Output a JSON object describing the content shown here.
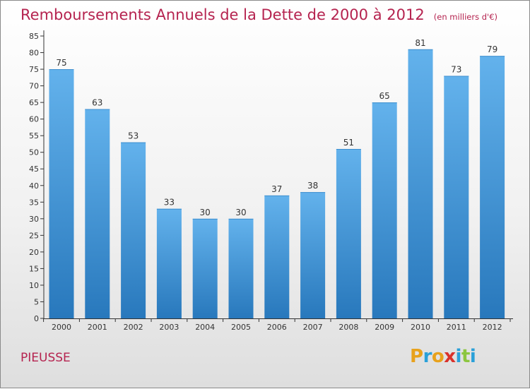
{
  "header": {
    "title": "Remboursements Annuels de la Dette de 2000 à 2012",
    "subtitle": "(en milliers d'€)"
  },
  "footer": {
    "commune": "PIEUSSE",
    "brand": "Proxiti",
    "brand_colors": [
      "#e8a21c",
      "#2aa0d8",
      "#e8a21c",
      "#d9322b",
      "#2aa0d8",
      "#8cc63f",
      "#2aa0d8"
    ]
  },
  "colors": {
    "bar_top": "#63b2ec",
    "bar_bottom": "#2878bc",
    "text_accent": "#b5234f",
    "axis": "#333333"
  },
  "chart_data": {
    "type": "bar",
    "categories": [
      "2000",
      "2001",
      "2002",
      "2003",
      "2004",
      "2005",
      "2006",
      "2007",
      "2008",
      "2009",
      "2010",
      "2011",
      "2012"
    ],
    "values": [
      75,
      63,
      53,
      33,
      30,
      30,
      37,
      38,
      51,
      65,
      81,
      73,
      79
    ],
    "title": "Remboursements Annuels de la Dette de 2000 à 2012",
    "subtitle": "(en milliers d'€)",
    "xlabel": "",
    "ylabel": "",
    "ylim": [
      0,
      85
    ],
    "yticks": [
      0,
      5,
      10,
      15,
      20,
      25,
      30,
      35,
      40,
      45,
      50,
      55,
      60,
      65,
      70,
      75,
      80,
      85
    ],
    "grid": false,
    "data_labels": true
  }
}
